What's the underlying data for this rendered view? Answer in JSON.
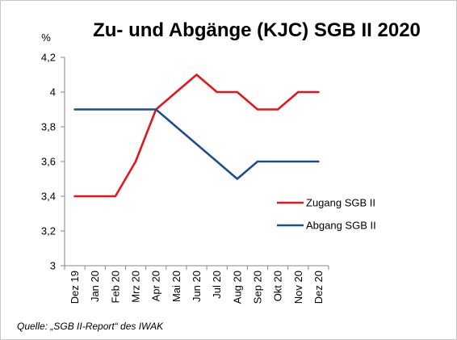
{
  "chart_data": {
    "type": "line",
    "title": "Zu- und Abgänge (KJC) SGB II 2020",
    "ylabel": "%",
    "xlabel": "",
    "ylim": [
      3,
      4.2
    ],
    "yticks": [
      "3",
      "3,2",
      "3,4",
      "3,6",
      "3,8",
      "4",
      "4,2"
    ],
    "categories": [
      "Dez 19",
      "Jan 20",
      "Feb 20",
      "Mrz 20",
      "Apr 20",
      "Mai 20",
      "Jun 20",
      "Jul 20",
      "Aug 20",
      "Sep 20",
      "Okt 20",
      "Nov 20",
      "Dez 20"
    ],
    "series": [
      {
        "name": "Zugang SGB II",
        "color": "#e8141c",
        "values": [
          3.4,
          3.4,
          3.4,
          3.6,
          3.9,
          4.0,
          4.1,
          4.0,
          4.0,
          3.9,
          3.9,
          4.0,
          4.0
        ]
      },
      {
        "name": "Abgang SGB II",
        "color": "#1f4e8c",
        "values": [
          3.9,
          3.9,
          3.9,
          3.9,
          3.9,
          3.8,
          3.7,
          3.6,
          3.5,
          3.6,
          3.6,
          3.6,
          3.6
        ]
      }
    ],
    "grid": false,
    "legend_position": "right"
  },
  "source": "Quelle: „SGB II-Report“ des IWAK"
}
